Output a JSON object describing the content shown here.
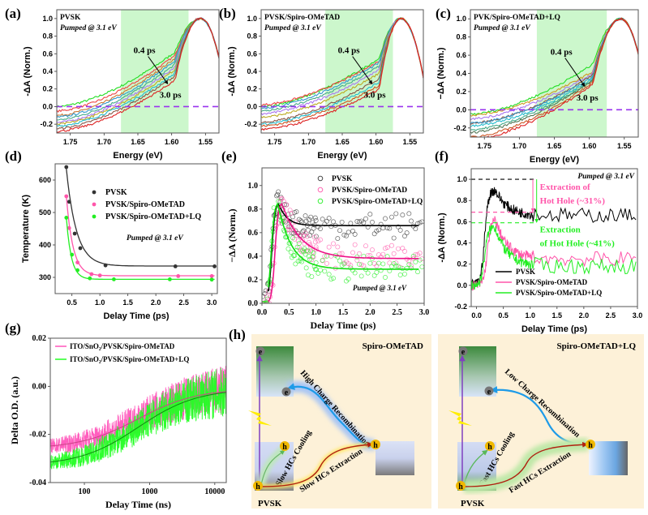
{
  "chart_data": [
    {
      "id": "a",
      "panel_label": "(a)",
      "type": "line",
      "title": "PVSK",
      "subtitle": "Pumped @ 3.1 eV",
      "xlabel": "Energy (eV)",
      "ylabel": "-ΔA (Norm.)",
      "xlim": [
        1.77,
        1.53
      ],
      "ylim": [
        -0.3,
        1.1
      ],
      "xticks": [
        1.75,
        1.7,
        1.65,
        1.6,
        1.55
      ],
      "yticks": [
        -0.2,
        0.0,
        0.2,
        0.4,
        0.6,
        0.8,
        1.0
      ],
      "shaded_region": [
        1.675,
        1.575
      ],
      "zero_line": 0.0,
      "arrow_labels": [
        "0.4 ps",
        "3.0 ps"
      ],
      "series_colors": [
        "#22dd22",
        "#ee4444",
        "#cc7733",
        "#3399cc",
        "#44aa88",
        "#aa77ee",
        "#bbaa22",
        "#22bbcc",
        "#885544",
        "#dd2222"
      ],
      "curve_params": {
        "start_values": [
          0.0,
          -0.05,
          -0.1,
          -0.12,
          -0.15,
          -0.18,
          -0.2,
          -0.22,
          -0.25,
          -0.28
        ],
        "shoulder_values": [
          0.62,
          0.58,
          0.55,
          0.52,
          0.48,
          0.45,
          0.42,
          0.38,
          0.35,
          0.3
        ],
        "peak_energy": 1.557
      }
    },
    {
      "id": "b",
      "panel_label": "(b)",
      "type": "line",
      "title": "PVSK/Spiro-OMeTAD",
      "subtitle": "Pumped @ 3.1 eV",
      "xlabel": "Energy (eV)",
      "ylabel": "-ΔA (Norm.)",
      "xlim": [
        1.77,
        1.53
      ],
      "ylim": [
        -0.3,
        1.1
      ],
      "xticks": [
        1.75,
        1.7,
        1.65,
        1.6,
        1.55
      ],
      "yticks": [
        -0.2,
        0.0,
        0.2,
        0.4,
        0.6,
        0.8,
        1.0
      ],
      "shaded_region": [
        1.675,
        1.575
      ],
      "zero_line": 0.0,
      "arrow_labels": [
        "0.4 ps",
        "3.0 ps"
      ],
      "series_colors": [
        "#22dd22",
        "#ee4444",
        "#3399cc",
        "#44aa88",
        "#aa77ee",
        "#bbaa22",
        "#885544",
        "#22bbcc",
        "#cc5522",
        "#dd2222"
      ],
      "curve_params": {
        "start_values": [
          0.0,
          0.02,
          -0.02,
          -0.05,
          -0.08,
          -0.12,
          -0.18,
          -0.2,
          -0.22,
          -0.26
        ],
        "shoulder_values": [
          0.55,
          0.52,
          0.5,
          0.46,
          0.42,
          0.38,
          0.32,
          0.28,
          0.24,
          0.2
        ],
        "peak_energy": 1.563
      }
    },
    {
      "id": "c",
      "panel_label": "(c)",
      "type": "line",
      "title": "PVK/Spiro-OMeTAD+LQ",
      "subtitle": "Pumped @ 3.1 eV",
      "xlabel": "Energy (eV)",
      "ylabel": "−ΔA (Norm.)",
      "xlim": [
        1.77,
        1.53
      ],
      "ylim": [
        -0.3,
        1.1
      ],
      "xticks": [
        1.75,
        1.7,
        1.65,
        1.6,
        1.55
      ],
      "yticks": [
        -0.2,
        0.0,
        0.2,
        0.4,
        0.6,
        0.8,
        1.0
      ],
      "shaded_region": [
        1.675,
        1.575
      ],
      "zero_line": 0.0,
      "arrow_labels": [
        "0.4 ps",
        "3.0 ps"
      ],
      "series_colors": [
        "#22dd22",
        "#cc9922",
        "#aa77ee",
        "#885544",
        "#3399cc",
        "#22bbcc",
        "#44aa88",
        "#557755",
        "#cc5522",
        "#dd2222"
      ],
      "curve_params": {
        "start_values": [
          -0.05,
          -0.06,
          -0.1,
          -0.15,
          -0.15,
          -0.18,
          -0.22,
          -0.25,
          -0.3,
          -0.33
        ],
        "shoulder_values": [
          0.5,
          0.42,
          0.4,
          0.38,
          0.36,
          0.34,
          0.33,
          0.32,
          0.3,
          0.28
        ],
        "peak_energy": 1.555
      }
    },
    {
      "id": "d",
      "panel_label": "(d)",
      "type": "scatter",
      "xlabel": "Delay Time (ps)",
      "ylabel": "Temperature (K)",
      "xlim": [
        0.2,
        3.1
      ],
      "ylim": [
        250,
        650
      ],
      "xticks": [
        0.5,
        1.0,
        1.5,
        2.0,
        2.5,
        3.0
      ],
      "yticks": [
        300,
        400,
        500,
        600
      ],
      "annotation": "Pumped @ 3.1 eV",
      "series": [
        {
          "name": "PVSK",
          "color": "#333333",
          "x": [
            0.4,
            0.45,
            0.55,
            0.65,
            1.1,
            2.35,
            3.05
          ],
          "y": [
            640,
            533,
            435,
            390,
            337,
            334,
            334
          ],
          "fit": {
            "y0": 335,
            "A": 300,
            "t0": 0.4,
            "tau": 0.18
          }
        },
        {
          "name": "PVSK/Spiro-OMeTAD",
          "color": "#ff55aa",
          "x": [
            0.4,
            0.45,
            0.6,
            0.85,
            1.0,
            2.4,
            3.0
          ],
          "y": [
            550,
            452,
            346,
            310,
            306,
            304,
            304
          ],
          "fit": {
            "y0": 305,
            "A": 245,
            "t0": 0.4,
            "tau": 0.12
          }
        },
        {
          "name": "PVSK/Spiro-OMeTAD+LQ",
          "color": "#22ee22",
          "x": [
            0.4,
            0.5,
            0.6,
            0.82,
            1.25,
            2.25,
            3.0
          ],
          "y": [
            484,
            370,
            322,
            297,
            294,
            294,
            293
          ],
          "fit": {
            "y0": 294,
            "A": 190,
            "t0": 0.4,
            "tau": 0.09
          }
        }
      ]
    },
    {
      "id": "e",
      "panel_label": "(e)",
      "type": "scatter",
      "xlabel": "Delay Time (ps)",
      "ylabel": "−ΔA (Norm.)",
      "xlim": [
        0.0,
        3.0
      ],
      "ylim": [
        0.0,
        1.15
      ],
      "xticks": [
        0.0,
        0.5,
        1.0,
        1.5,
        2.0,
        2.5,
        3.0
      ],
      "yticks": [
        0.0,
        0.2,
        0.4,
        0.6,
        0.8,
        1.0
      ],
      "annotation": "Pumped @ 3.1 eV",
      "series": [
        {
          "name": "PVSK",
          "color": "#333333",
          "fit": {
            "rise_center": 0.18,
            "peak": 0.86,
            "plateau": 0.66,
            "tau": 0.15
          }
        },
        {
          "name": "PVSK/Spiro-OMeTAD",
          "color": "#ff55aa",
          "fit": {
            "rise_center": 0.24,
            "peak": 0.86,
            "plateau": 0.38,
            "tau": 0.35
          }
        },
        {
          "name": "PVSK/Spiro-OMeTAD+LQ",
          "color": "#22ee22",
          "fit": {
            "rise_center": 0.17,
            "peak": 0.86,
            "plateau": 0.29,
            "tau": 0.25
          }
        }
      ]
    },
    {
      "id": "f",
      "panel_label": "(f)",
      "type": "line",
      "xlabel": "Delay Time (ps)",
      "ylabel": "-ΔA (Norm.)",
      "xlim": [
        -0.1,
        3.0
      ],
      "ylim": [
        -0.2,
        1.1
      ],
      "xticks": [
        0.0,
        0.5,
        1.0,
        1.5,
        2.0,
        2.5,
        3.0
      ],
      "yticks": [
        -0.2,
        0.0,
        0.2,
        0.4,
        0.6,
        0.8,
        1.0
      ],
      "annotation": "Pumped @ 3.1 eV",
      "reference_lines": [
        {
          "y": 1.0,
          "color": "#000000"
        },
        {
          "y": 0.69,
          "color": "#ff55aa"
        },
        {
          "y": 0.59,
          "color": "#22ee22"
        }
      ],
      "extraction_labels": [
        {
          "line1": "Extraction of",
          "line2": "Hot Hole (~31%)",
          "color": "#ff55aa"
        },
        {
          "line1": "Extraction",
          "line2": "of Hot Hole (~41%)",
          "color": "#22ee22"
        }
      ],
      "series": [
        {
          "name": "PVSK",
          "color": "#000000",
          "peak": 0.9,
          "plateau": 0.66
        },
        {
          "name": "PVSK/Spiro-OMeTAD",
          "color": "#ff55aa",
          "peak": 0.62,
          "plateau": 0.25
        },
        {
          "name": "PVSK/Spiro-OMeTAD+LQ",
          "color": "#22ee22",
          "peak": 0.55,
          "plateau": 0.18
        }
      ]
    },
    {
      "id": "g",
      "panel_label": "(g)",
      "type": "line",
      "xlabel": "Delay Time (ns)",
      "ylabel": "Delta O.D. (a.u.)",
      "xscale": "log",
      "xlim": [
        30,
        15000
      ],
      "ylim": [
        -0.04,
        0.02
      ],
      "xticks": [
        100,
        1000,
        10000
      ],
      "yticks": [
        -0.04,
        -0.02,
        0.0,
        0.02
      ],
      "series": [
        {
          "name": "ITO/SnO₂/PVSK/Spiro-OMeTAD",
          "color": "#ff55bb",
          "start": -0.026,
          "end": -0.001
        },
        {
          "name": "ITO/SnO₂/PVSK/Spiro-OMeTAD+LQ",
          "color": "#22ff22",
          "start": -0.033,
          "end": -0.001
        }
      ]
    }
  ],
  "schematic": {
    "panel_label": "(h)",
    "left": {
      "title": "Spiro-OMeTAD",
      "recombination_label": "High Charge Recombination",
      "cooling_label": "Slow HCs Cooling",
      "extraction_label": "Slow HCs Extraction",
      "material_label": "PVSK"
    },
    "right": {
      "title": "Spiro-OMeTAD+LQ",
      "recombination_label": "Low Charge Recombination",
      "cooling_label": "Fast HCs Cooling",
      "extraction_label": "Fast HCs Extraction",
      "material_label": "PVSK"
    },
    "electron_symbol": "e",
    "hole_symbol": "h"
  }
}
